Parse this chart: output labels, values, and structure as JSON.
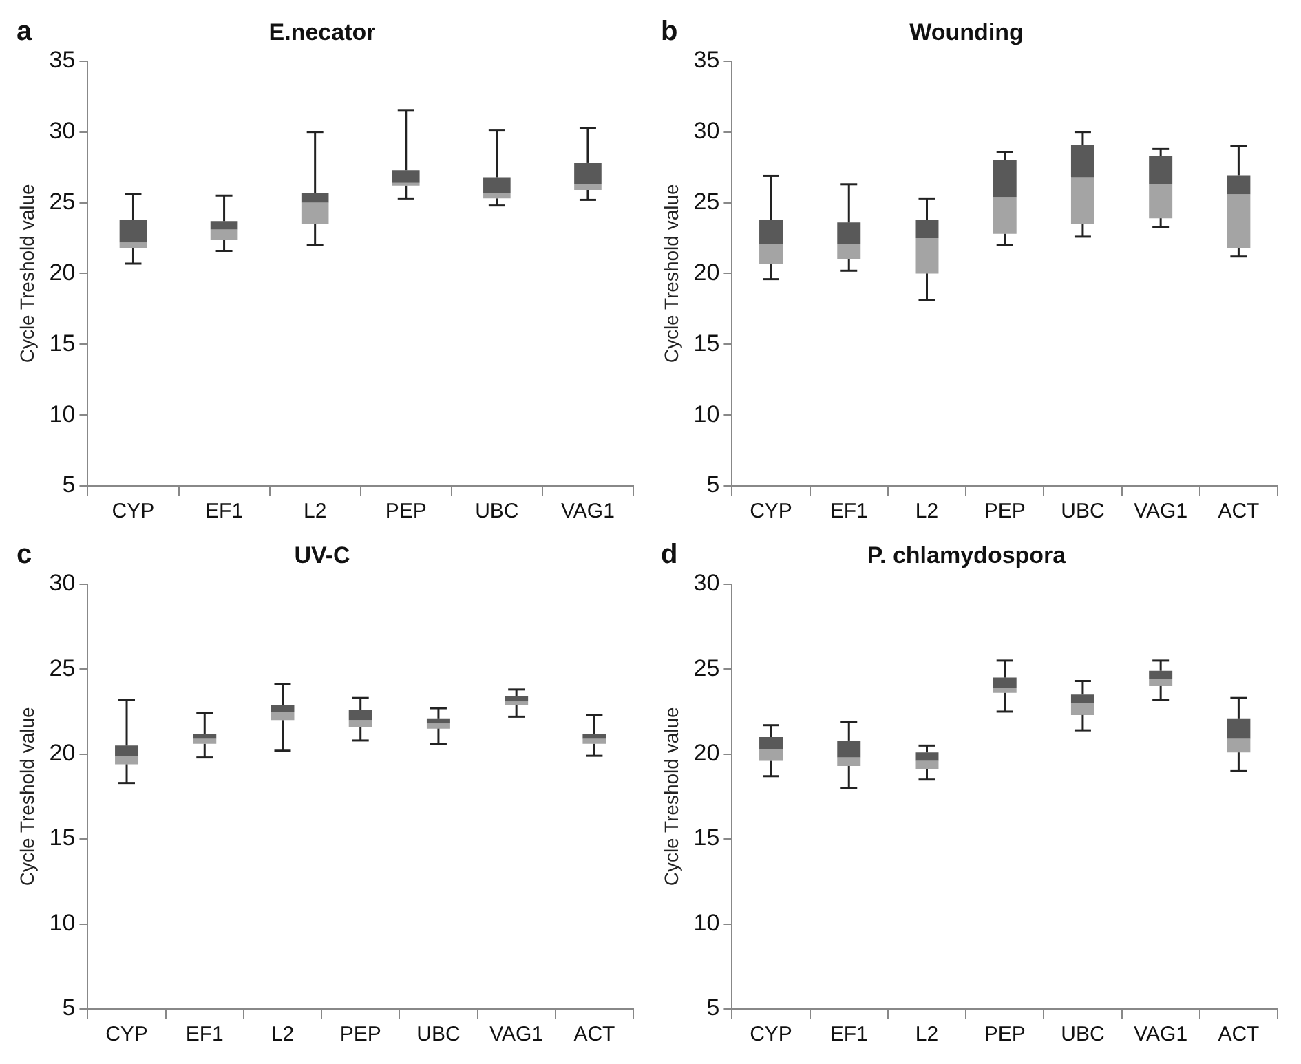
{
  "chart_data": [
    {
      "type": "box",
      "title": "E.necator",
      "ylabel": "Cycle Treshold value",
      "annotations": [
        "a"
      ],
      "color": "#595959",
      "categories": [
        "CYP",
        "EF1",
        "L2",
        "PEP",
        "UBC",
        "VAG1"
      ],
      "ylim": [
        5,
        35
      ],
      "yticks": [
        5,
        10,
        15,
        20,
        25,
        30,
        35
      ],
      "boxes": [
        {
          "low": 20.7,
          "q1": 21.8,
          "median": 22.2,
          "q3": 23.8,
          "high": 25.6
        },
        {
          "low": 21.6,
          "q1": 22.4,
          "median": 23.1,
          "q3": 23.7,
          "high": 25.5
        },
        {
          "low": 22.0,
          "q1": 23.5,
          "median": 25.0,
          "q3": 25.7,
          "high": 30.0
        },
        {
          "low": 25.3,
          "q1": 26.2,
          "median": 26.4,
          "q3": 27.3,
          "high": 31.5
        },
        {
          "low": 24.8,
          "q1": 25.3,
          "median": 25.7,
          "q3": 26.8,
          "high": 30.1
        },
        {
          "low": 25.2,
          "q1": 25.9,
          "median": 26.3,
          "q3": 27.8,
          "high": 30.3
        }
      ]
    },
    {
      "type": "box",
      "title": "Wounding",
      "ylabel": "Cycle Treshold value",
      "annotations": [
        "b"
      ],
      "color": "#595959",
      "categories": [
        "CYP",
        "EF1",
        "L2",
        "PEP",
        "UBC",
        "VAG1",
        "ACT"
      ],
      "ylim": [
        5,
        35
      ],
      "yticks": [
        5,
        10,
        15,
        20,
        25,
        30,
        35
      ],
      "boxes": [
        {
          "low": 19.6,
          "q1": 20.7,
          "median": 22.1,
          "q3": 23.8,
          "high": 26.9
        },
        {
          "low": 20.2,
          "q1": 21.0,
          "median": 22.1,
          "q3": 23.6,
          "high": 26.3
        },
        {
          "low": 18.1,
          "q1": 20.0,
          "median": 22.5,
          "q3": 23.8,
          "high": 25.3
        },
        {
          "low": 22.0,
          "q1": 22.8,
          "median": 25.4,
          "q3": 28.0,
          "high": 28.6
        },
        {
          "low": 22.6,
          "q1": 23.5,
          "median": 26.8,
          "q3": 29.1,
          "high": 30.0
        },
        {
          "low": 23.3,
          "q1": 23.9,
          "median": 26.3,
          "q3": 28.3,
          "high": 28.8
        },
        {
          "low": 21.2,
          "q1": 21.8,
          "median": 25.6,
          "q3": 26.9,
          "high": 29.0
        }
      ]
    },
    {
      "type": "box",
      "title": "UV-C",
      "ylabel": "Cycle Treshold value",
      "annotations": [
        "c"
      ],
      "color": "#595959",
      "categories": [
        "CYP",
        "EF1",
        "L2",
        "PEP",
        "UBC",
        "VAG1",
        "ACT"
      ],
      "ylim": [
        5,
        30
      ],
      "yticks": [
        5,
        10,
        15,
        20,
        25,
        30
      ],
      "boxes": [
        {
          "low": 18.3,
          "q1": 19.4,
          "median": 19.9,
          "q3": 20.5,
          "high": 23.2
        },
        {
          "low": 19.8,
          "q1": 20.6,
          "median": 20.9,
          "q3": 21.2,
          "high": 22.4
        },
        {
          "low": 20.2,
          "q1": 22.0,
          "median": 22.5,
          "q3": 22.9,
          "high": 24.1
        },
        {
          "low": 20.8,
          "q1": 21.6,
          "median": 22.0,
          "q3": 22.6,
          "high": 23.3
        },
        {
          "low": 20.6,
          "q1": 21.5,
          "median": 21.8,
          "q3": 22.1,
          "high": 22.7
        },
        {
          "low": 22.2,
          "q1": 22.9,
          "median": 23.1,
          "q3": 23.4,
          "high": 23.8
        },
        {
          "low": 19.9,
          "q1": 20.6,
          "median": 20.9,
          "q3": 21.2,
          "high": 22.3
        }
      ]
    },
    {
      "type": "box",
      "title": "P. chlamydospora",
      "ylabel": "Cycle Treshold value",
      "annotations": [
        "d"
      ],
      "color": "#595959",
      "categories": [
        "CYP",
        "EF1",
        "L2",
        "PEP",
        "UBC",
        "VAG1",
        "ACT"
      ],
      "ylim": [
        5,
        30
      ],
      "yticks": [
        5,
        10,
        15,
        20,
        25,
        30
      ],
      "boxes": [
        {
          "low": 18.7,
          "q1": 19.6,
          "median": 20.3,
          "q3": 21.0,
          "high": 21.7
        },
        {
          "low": 18.0,
          "q1": 19.3,
          "median": 19.8,
          "q3": 20.8,
          "high": 21.9
        },
        {
          "low": 18.5,
          "q1": 19.1,
          "median": 19.6,
          "q3": 20.1,
          "high": 20.5
        },
        {
          "low": 22.5,
          "q1": 23.6,
          "median": 23.9,
          "q3": 24.5,
          "high": 25.5
        },
        {
          "low": 21.4,
          "q1": 22.3,
          "median": 23.0,
          "q3": 23.5,
          "high": 24.3
        },
        {
          "low": 23.2,
          "q1": 24.0,
          "median": 24.4,
          "q3": 24.9,
          "high": 25.5
        },
        {
          "low": 19.0,
          "q1": 20.1,
          "median": 20.9,
          "q3": 22.1,
          "high": 23.3
        }
      ]
    }
  ]
}
